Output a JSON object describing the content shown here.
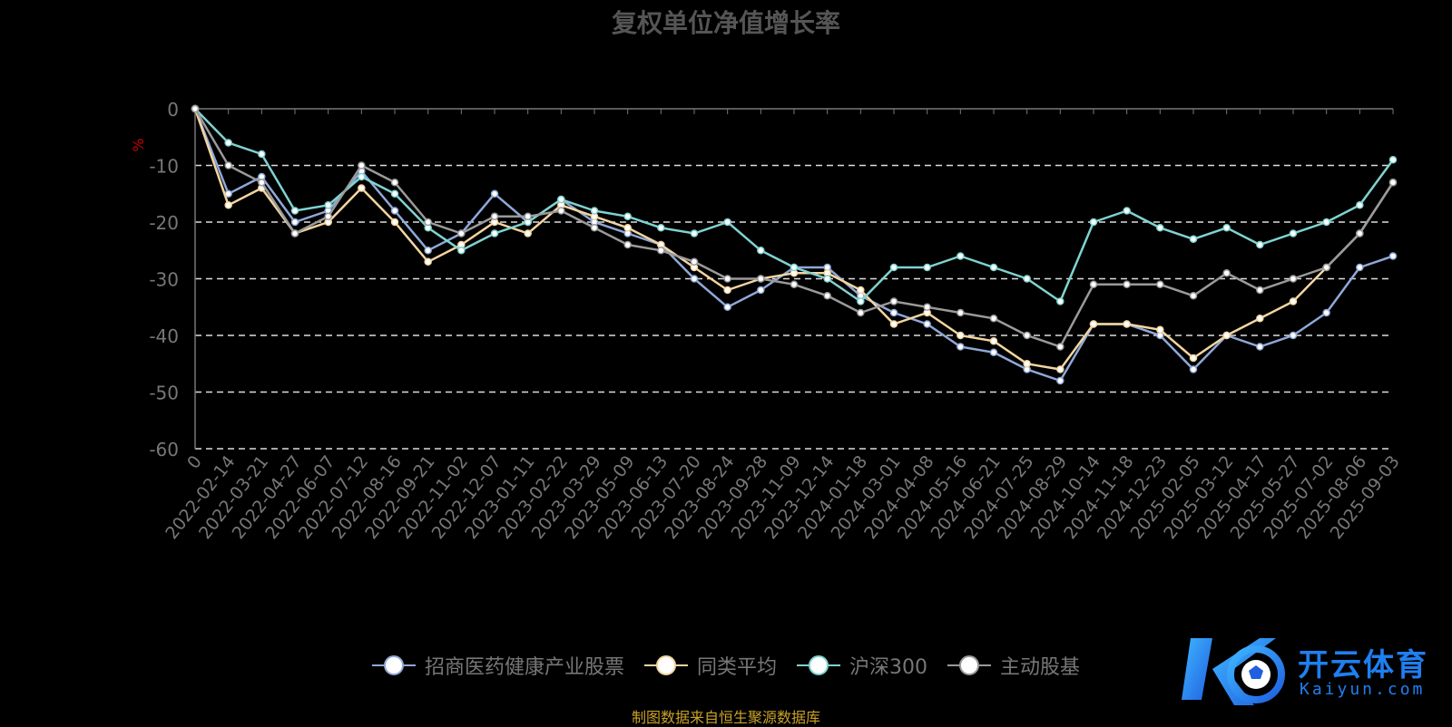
{
  "chart_data": {
    "type": "line",
    "title": "复权单位净值增长率",
    "ylabel": "%",
    "ylim": [
      -60,
      0
    ],
    "yticks": [
      0,
      -10,
      -20,
      -30,
      -40,
      -50,
      -60
    ],
    "grid": "dashed horizontal",
    "legend_position": "bottom",
    "x": [
      "0",
      "2022-02-14",
      "2022-03-21",
      "2022-04-27",
      "2022-06-07",
      "2022-07-12",
      "2022-08-16",
      "2022-09-21",
      "2022-11-02",
      "2022-12-07",
      "2023-01-11",
      "2023-02-22",
      "2023-03-29",
      "2023-05-09",
      "2023-06-13",
      "2023-07-20",
      "2023-08-24",
      "2023-09-28",
      "2023-11-09",
      "2023-12-14",
      "2024-01-18",
      "2024-03-01",
      "2024-04-08",
      "2024-05-16",
      "2024-06-21",
      "2024-07-25",
      "2024-08-29",
      "2024-10-14",
      "2024-11-18",
      "2024-12-23",
      "2025-02-05",
      "2025-03-12",
      "2025-04-17",
      "2025-05-27",
      "2025-07-02",
      "2025-08-06",
      "2025-09-03"
    ],
    "series": [
      {
        "name": "招商医药健康产业股票",
        "color": "#8fa8d8",
        "values": [
          0,
          -15,
          -12,
          -20,
          -18,
          -11,
          -18,
          -25,
          -22,
          -15,
          -20,
          -16,
          -20,
          -22,
          -24,
          -30,
          -35,
          -32,
          -28,
          -28,
          -33,
          -36,
          -38,
          -42,
          -43,
          -46,
          -48,
          -38,
          -38,
          -40,
          -46,
          -40,
          -42,
          -40,
          -36,
          -28,
          -26
        ]
      },
      {
        "name": "同类平均",
        "color": "#f3d5a0",
        "values": [
          0,
          -17,
          -14,
          -22,
          -20,
          -14,
          -20,
          -27,
          -24,
          -20,
          -22,
          -17,
          -19,
          -21,
          -24,
          -28,
          -32,
          -30,
          -29,
          -29,
          -32,
          -38,
          -36,
          -40,
          -41,
          -45,
          -46,
          -38,
          -38,
          -39,
          -44,
          -40,
          -37,
          -34,
          -28,
          -22,
          -13
        ]
      },
      {
        "name": "沪深300",
        "color": "#7fd3d0",
        "values": [
          0,
          -6,
          -8,
          -18,
          -17,
          -12,
          -15,
          -21,
          -25,
          -22,
          -20,
          -16,
          -18,
          -19,
          -21,
          -22,
          -20,
          -25,
          -28,
          -30,
          -34,
          -28,
          -28,
          -26,
          -28,
          -30,
          -34,
          -20,
          -18,
          -21,
          -23,
          -21,
          -24,
          -22,
          -20,
          -17,
          -9
        ]
      },
      {
        "name": "主动股基",
        "color": "#9a9a9a",
        "values": [
          0,
          -10,
          -13,
          -22,
          -19,
          -10,
          -13,
          -20,
          -22,
          -19,
          -19,
          -18,
          -21,
          -24,
          -25,
          -27,
          -30,
          -30,
          -31,
          -33,
          -36,
          -34,
          -35,
          -36,
          -37,
          -40,
          -42,
          -31,
          -31,
          -31,
          -33,
          -29,
          -32,
          -30,
          -28,
          -22,
          -13
        ]
      }
    ]
  },
  "source": "制图数据来自恒生聚源数据库",
  "logo": {
    "text": "开云体育",
    "sub": "Kaiyun.com"
  }
}
